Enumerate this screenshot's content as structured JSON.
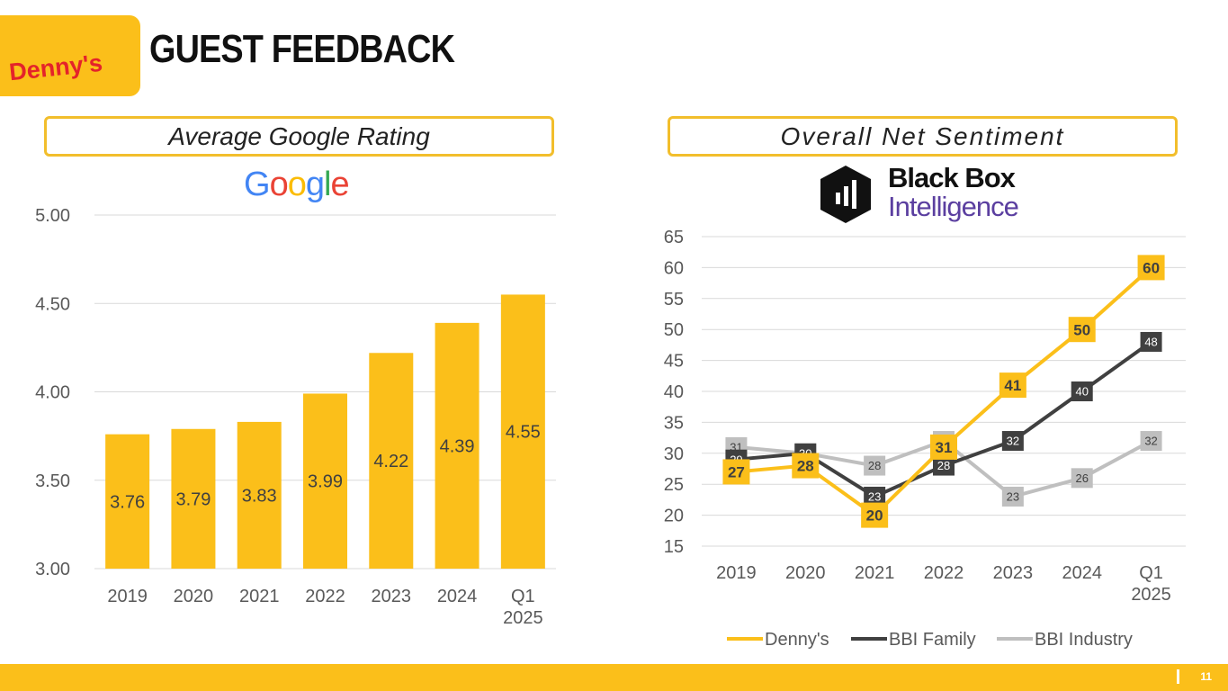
{
  "header": {
    "brand_logo_text": "Denny's",
    "title": "GUEST FEEDBACK"
  },
  "left_panel": {
    "title": "Average Google Rating",
    "logo_text": "Google"
  },
  "right_panel": {
    "title": "Overall Net Sentiment",
    "logo_line1": "Black Box",
    "logo_line2": "Intelligence"
  },
  "footer": {
    "page_number": "11"
  },
  "colors": {
    "accent": "#FBBF1A",
    "bbi_family": "#404040",
    "bbi_industry": "#BFBFBF"
  },
  "chart_data": [
    {
      "type": "bar",
      "categories": [
        "2019",
        "2020",
        "2021",
        "2022",
        "2023",
        "2024",
        "Q1\n2025"
      ],
      "values": [
        3.76,
        3.79,
        3.83,
        3.99,
        4.22,
        4.39,
        4.55
      ],
      "data_labels": [
        "3.76",
        "3.79",
        "3.83",
        "3.99",
        "4.22",
        "4.39",
        "4.55"
      ],
      "ylim": [
        3.0,
        5.0
      ],
      "yticks": [
        "3.00",
        "3.50",
        "4.00",
        "4.50",
        "5.00"
      ],
      "grid": true,
      "color": "#FBBF1A"
    },
    {
      "type": "line",
      "categories": [
        "2019",
        "2020",
        "2021",
        "2022",
        "2023",
        "2024",
        "Q1\n2025"
      ],
      "series": [
        {
          "name": "Denny's",
          "values": [
            27,
            28,
            20,
            31,
            41,
            50,
            60
          ],
          "color": "#FBBF1A"
        },
        {
          "name": "BBI Family",
          "values": [
            29,
            30,
            23,
            28,
            32,
            40,
            48
          ],
          "color": "#404040"
        },
        {
          "name": "BBI Industry",
          "values": [
            31,
            30,
            28,
            32,
            23,
            26,
            32
          ],
          "color": "#BFBFBF"
        }
      ],
      "ylim": [
        15,
        65
      ],
      "yticks": [
        "15",
        "20",
        "25",
        "30",
        "35",
        "40",
        "45",
        "50",
        "55",
        "60",
        "65"
      ],
      "grid": true,
      "legend": "bottom"
    }
  ]
}
